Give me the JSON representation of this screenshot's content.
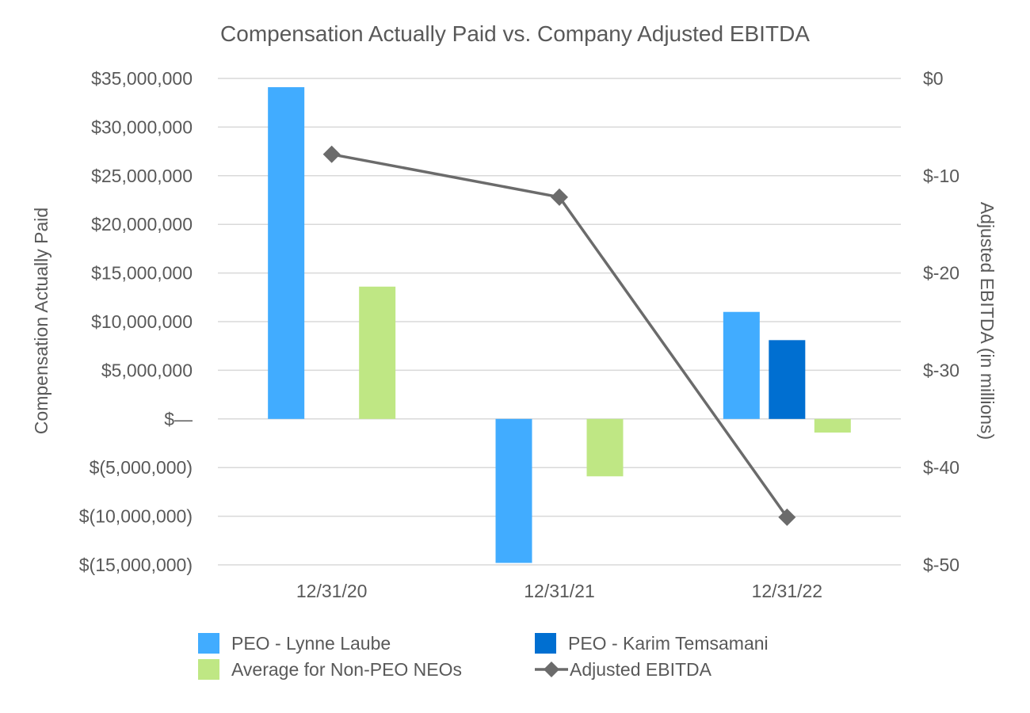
{
  "chart_data": {
    "type": "bar",
    "title": "Compensation Actually Paid vs. Company Adjusted EBITDA",
    "categories": [
      "12/31/20",
      "12/31/21",
      "12/31/22"
    ],
    "ylabel": "Compensation Actually Paid",
    "y2label": "Adjusted EBITDA (in millions)",
    "ylim": [
      -15000000,
      35000000
    ],
    "y2lim": [
      -50,
      0
    ],
    "yticks": [
      35000000,
      30000000,
      25000000,
      20000000,
      15000000,
      10000000,
      5000000,
      0,
      -5000000,
      -10000000,
      -15000000
    ],
    "ytick_labels": [
      "$35,000,000",
      "$30,000,000",
      "$25,000,000",
      "$20,000,000",
      "$15,000,000",
      "$10,000,000",
      "$5,000,000",
      "$—",
      "$(5,000,000)",
      "$(10,000,000)",
      "$(15,000,000)"
    ],
    "y2ticks": [
      0,
      -10,
      -20,
      -30,
      -40,
      -50
    ],
    "y2tick_labels": [
      "$0",
      "$-10",
      "$-20",
      "$-30",
      "$-40",
      "$-50"
    ],
    "grid": true,
    "legend_position": "bottom",
    "series": [
      {
        "name": "PEO - Lynne Laube",
        "type": "bar",
        "axis": "left",
        "color": "#41acff",
        "values": [
          34100000,
          -14800000,
          11000000
        ]
      },
      {
        "name": "PEO - Karim Temsamani",
        "type": "bar",
        "axis": "left",
        "color": "#006fd1",
        "values": [
          null,
          null,
          8100000
        ]
      },
      {
        "name": "Average for Non-PEO NEOs",
        "type": "bar",
        "axis": "left",
        "color": "#bfe784",
        "values": [
          13600000,
          -5900000,
          -1400000
        ]
      },
      {
        "name": "Adjusted EBITDA",
        "type": "line",
        "marker": "diamond",
        "axis": "right",
        "color": "#6b6b6b",
        "values": [
          -7.8,
          -12.2,
          -45.1
        ]
      }
    ]
  }
}
